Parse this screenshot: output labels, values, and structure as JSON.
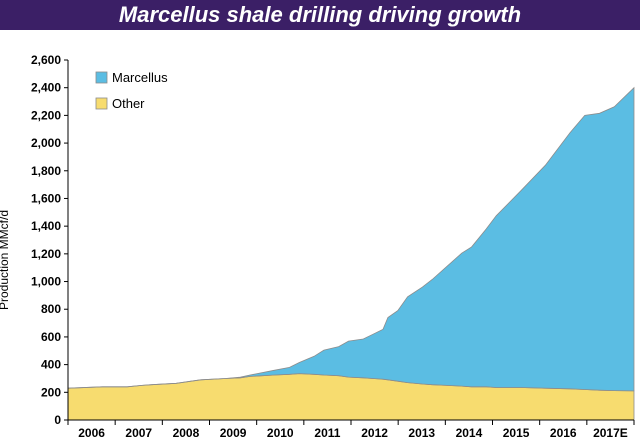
{
  "title": "Marcellus shale drilling driving growth",
  "chart_data": {
    "type": "area",
    "stacked": true,
    "title": "Marcellus shale drilling driving growth",
    "ylabel": "Production MMcf/d",
    "xlabel": "",
    "ylim": [
      0,
      2600
    ],
    "yticks": [
      0,
      200,
      400,
      600,
      800,
      1000,
      1200,
      1400,
      1600,
      1800,
      2000,
      2200,
      2400,
      2600
    ],
    "x_tick_labels": [
      "2006",
      "2007",
      "2008",
      "2009",
      "2010",
      "2011",
      "2012",
      "2013",
      "2014",
      "2015",
      "2016",
      "2017E"
    ],
    "legend_position": "top-left",
    "grid": false,
    "x": [
      2005.8,
      2006.5,
      2007.0,
      2007.3,
      2007.5,
      2008.0,
      2008.3,
      2008.5,
      2009.0,
      2009.3,
      2009.5,
      2010.0,
      2010.3,
      2010.5,
      2010.8,
      2011.0,
      2011.3,
      2011.5,
      2011.8,
      2012.0,
      2012.2,
      2012.3,
      2012.5,
      2012.7,
      2013.0,
      2013.2,
      2013.5,
      2013.8,
      2014.0,
      2014.3,
      2014.5,
      2015.0,
      2015.5,
      2016.0,
      2016.3,
      2016.6,
      2016.9,
      2017.3
    ],
    "series": [
      {
        "name": "Other",
        "color": "#f7dc6f",
        "values": [
          230,
          240,
          240,
          250,
          255,
          265,
          280,
          290,
          300,
          305,
          315,
          325,
          330,
          335,
          330,
          325,
          320,
          310,
          305,
          300,
          295,
          290,
          280,
          270,
          260,
          255,
          250,
          245,
          240,
          240,
          235,
          235,
          230,
          225,
          220,
          215,
          212,
          210
        ]
      },
      {
        "name": "Marcellus",
        "color": "#5bbde3",
        "values": [
          0,
          0,
          0,
          0,
          0,
          0,
          0,
          0,
          0,
          5,
          10,
          35,
          50,
          80,
          130,
          180,
          210,
          260,
          280,
          320,
          360,
          450,
          510,
          620,
          700,
          760,
          860,
          960,
          1010,
          1140,
          1240,
          1420,
          1610,
          1850,
          1980,
          2000,
          2050,
          2190
        ]
      }
    ]
  }
}
